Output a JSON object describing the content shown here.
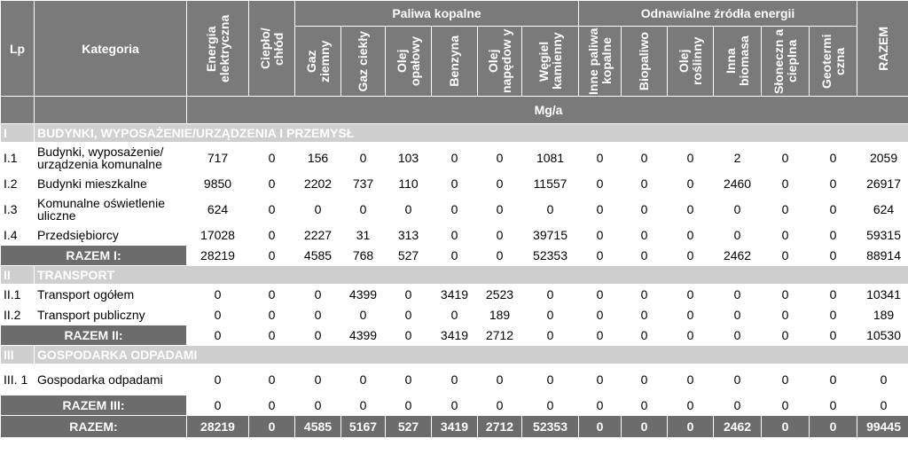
{
  "header": {
    "lp": "Lp",
    "category": "Kategoria",
    "group_fossil": "Paliwa kopalne",
    "group_renewable": "Odnawialne źródła energii",
    "unit": "Mg/a",
    "columns": [
      "Energia elektryczna",
      "Ciepło/ chłód",
      "Gaz ziemny",
      "Gaz ciekły",
      "Olej opałowy",
      "Benzyna",
      "Olej napędow y",
      "Węgiel kamienny",
      "Inne paliwa kopalne",
      "Biopaliwo",
      "Olej roślinny",
      "Inna biomasa",
      "Słoneczn a cieplna",
      "Geotermi czna",
      "RAZEM"
    ]
  },
  "sections": [
    {
      "num": "I",
      "title": "BUDYNKI, WYPOSAŻENIE/URZĄDZENIA I PRZEMYSŁ",
      "rows": [
        {
          "lp": "I.1",
          "cat": "Budynki, wyposażenie/ urządzenia komunalne",
          "values": [
            "717",
            "0",
            "156",
            "0",
            "103",
            "0",
            "0",
            "1081",
            "0",
            "0",
            "0",
            "2",
            "0",
            "0",
            "2059"
          ]
        },
        {
          "lp": "I.2",
          "cat": "Budynki mieszkalne",
          "values": [
            "9850",
            "0",
            "2202",
            "737",
            "110",
            "0",
            "0",
            "11557",
            "0",
            "0",
            "0",
            "2460",
            "0",
            "0",
            "26917"
          ]
        },
        {
          "lp": "I.3",
          "cat": "Komunalne oświetlenie uliczne",
          "values": [
            "624",
            "0",
            "0",
            "0",
            "0",
            "0",
            "0",
            "0",
            "0",
            "0",
            "0",
            "0",
            "0",
            "0",
            "624"
          ]
        },
        {
          "lp": "I.4",
          "cat": "Przedsiębiorcy",
          "values": [
            "17028",
            "0",
            "2227",
            "31",
            "313",
            "0",
            "0",
            "39715",
            "0",
            "0",
            "0",
            "0",
            "0",
            "0",
            "59315"
          ]
        }
      ],
      "total": {
        "label": "RAZEM I:",
        "values": [
          "28219",
          "0",
          "4585",
          "768",
          "527",
          "0",
          "0",
          "52353",
          "0",
          "0",
          "0",
          "2462",
          "0",
          "0",
          "88914"
        ]
      }
    },
    {
      "num": "II",
      "title": "TRANSPORT",
      "rows": [
        {
          "lp": "II.1",
          "cat": "Transport ogółem",
          "values": [
            "0",
            "0",
            "0",
            "4399",
            "0",
            "3419",
            "2523",
            "0",
            "0",
            "0",
            "0",
            "0",
            "0",
            "0",
            "10341"
          ]
        },
        {
          "lp": "II.2",
          "cat": "Transport publiczny",
          "values": [
            "0",
            "0",
            "0",
            "0",
            "0",
            "0",
            "189",
            "0",
            "0",
            "0",
            "0",
            "0",
            "0",
            "0",
            "189"
          ]
        }
      ],
      "total": {
        "label": "RAZEM II:",
        "values": [
          "0",
          "0",
          "0",
          "4399",
          "0",
          "3419",
          "2712",
          "0",
          "0",
          "0",
          "0",
          "0",
          "0",
          "0",
          "10530"
        ]
      }
    },
    {
      "num": "III",
      "title": "GOSPODARKA ODPADAMI",
      "rows": [
        {
          "lp": "III. 1",
          "cat": "Gospodarka odpadami",
          "values": [
            "0",
            "0",
            "0",
            "0",
            "0",
            "0",
            "0",
            "0",
            "0",
            "0",
            "0",
            "0",
            "0",
            "0",
            "0"
          ]
        }
      ],
      "total": {
        "label": "RAZEM III:",
        "values": [
          "0",
          "0",
          "0",
          "0",
          "0",
          "0",
          "0",
          "0",
          "0",
          "0",
          "0",
          "0",
          "0",
          "0",
          "0"
        ]
      }
    }
  ],
  "grand_total": {
    "label": "RAZEM:",
    "values": [
      "28219",
      "0",
      "4585",
      "5167",
      "527",
      "3419",
      "2712",
      "52353",
      "0",
      "0",
      "0",
      "2462",
      "0",
      "0",
      "99445"
    ]
  }
}
